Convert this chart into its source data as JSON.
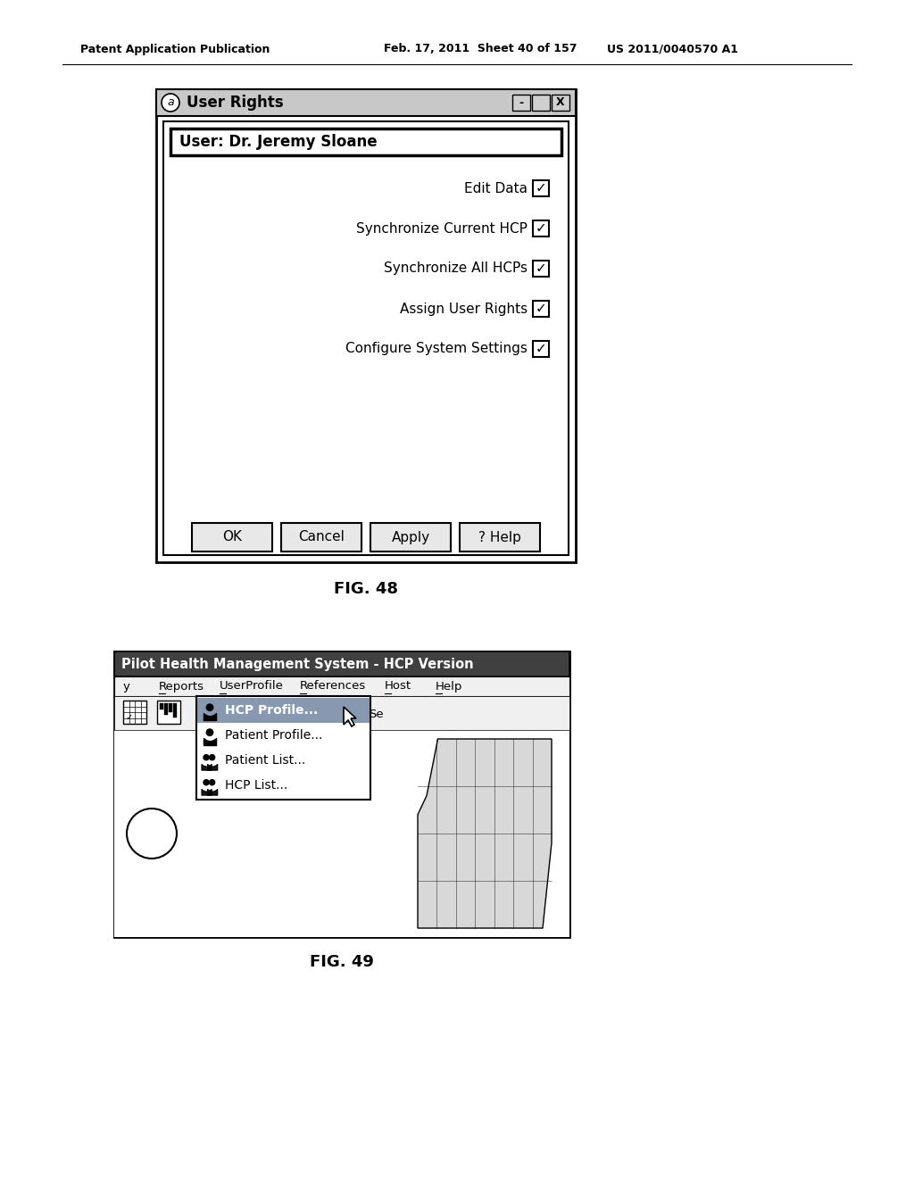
{
  "bg_color": "#ffffff",
  "header_text_left": "Patent Application Publication",
  "header_text_mid": "Feb. 17, 2011  Sheet 40 of 157",
  "header_text_right": "US 2011/0040570 A1",
  "fig48_label": "FIG. 48",
  "fig49_label": "FIG. 49",
  "dialog1": {
    "title": "User Rights",
    "user_label": "User: Dr. Jeremy Sloane",
    "checkboxes": [
      "Edit Data",
      "Synchronize Current HCP",
      "Synchronize All HCPs",
      "Assign User Rights",
      "Configure System Settings"
    ],
    "buttons": [
      "OK",
      "Cancel",
      "Apply",
      "? Help"
    ]
  },
  "dialog2": {
    "title": "Pilot Health Management System - HCP Version",
    "menubar": [
      "y",
      "Reports",
      "UserProfile",
      "References",
      "Host",
      "Help"
    ],
    "dropdown_items": [
      "HCP Profile...",
      "Patient Profile...",
      "Patient List...",
      "HCP List..."
    ],
    "selected_item": "HCP Profile..."
  }
}
